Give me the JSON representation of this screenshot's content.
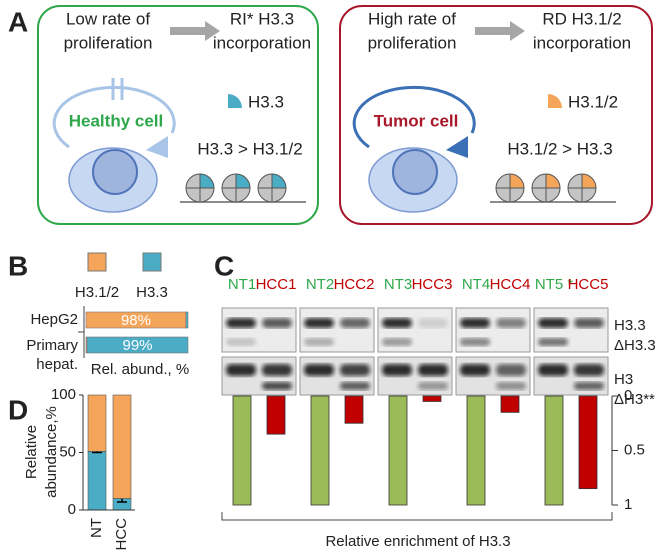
{
  "panel_a": {
    "label": "A",
    "healthy": {
      "rate_lines": [
        "Low rate of",
        "proliferation"
      ],
      "incorp_lines": [
        "RI* H3.3",
        "incorporation"
      ],
      "cell": "Healthy cell",
      "legend": "H3.3",
      "relation": "H3.3 > H3.1/2"
    },
    "tumor": {
      "rate_lines": [
        "High rate of",
        "proliferation"
      ],
      "incorp_lines": [
        "RD H3.1/2",
        "incorporation"
      ],
      "cell": "Tumor cell",
      "legend": "H3.1/2",
      "relation": "H3.1/2 > H3.3"
    }
  },
  "chart_data": [
    {
      "label": "B",
      "type": "bar",
      "orientation": "horizontal",
      "stacked": true,
      "categories": [
        "HepG2",
        "Primary hepat."
      ],
      "series": [
        {
          "name": "H3.1/2",
          "color": "#f5a55a",
          "values": [
            98,
            1
          ],
          "value_labels": [
            "98%",
            null
          ]
        },
        {
          "name": "H3.3",
          "color": "#4bacc6",
          "values": [
            2,
            99
          ],
          "value_labels": [
            null,
            "99%"
          ]
        }
      ],
      "x_label": "Rel. abund., %",
      "xlim": [
        0,
        100
      ]
    },
    {
      "label": "C",
      "type": "bar",
      "categories": [
        "NT1",
        "HCC1",
        "NT2",
        "HCC2",
        "NT3",
        "HCC3",
        "NT4",
        "HCC4",
        "NT5 *",
        "HCC5"
      ],
      "category_colors": [
        "#2ea84a",
        "#c00000",
        "#2ea84a",
        "#c00000",
        "#2ea84a",
        "#c00000",
        "#2ea84a",
        "#c00000",
        "#2ea84a",
        "#c00000"
      ],
      "values": [
        1,
        0.35,
        1,
        0.25,
        1,
        0.05,
        1,
        0.15,
        1,
        0.85
      ],
      "colors": [
        "#9bbb59",
        "#c00000",
        "#9bbb59",
        "#c00000",
        "#9bbb59",
        "#c00000",
        "#9bbb59",
        "#c00000",
        "#9bbb59",
        "#c00000"
      ],
      "band_labels": [
        "H3.3",
        "ΔH3.3",
        "H3",
        "ΔH3**"
      ],
      "x_label": "Relative enrichment of H3.3",
      "ylim": [
        0,
        1
      ],
      "yticks": [
        0,
        0.5,
        1
      ],
      "y_inverted": true
    },
    {
      "label": "D",
      "type": "bar",
      "stacked": true,
      "categories": [
        "NT",
        "HCC"
      ],
      "series": [
        {
          "color": "#4bacc6",
          "values": [
            51,
            10
          ],
          "errors": [
            1,
            3
          ]
        },
        {
          "color": "#f5a55a",
          "values": [
            49,
            90
          ]
        }
      ],
      "y_label_lines": [
        "Relative",
        "abundance,%"
      ],
      "ylim": [
        0,
        100
      ],
      "yticks": [
        0,
        50,
        100
      ]
    }
  ]
}
